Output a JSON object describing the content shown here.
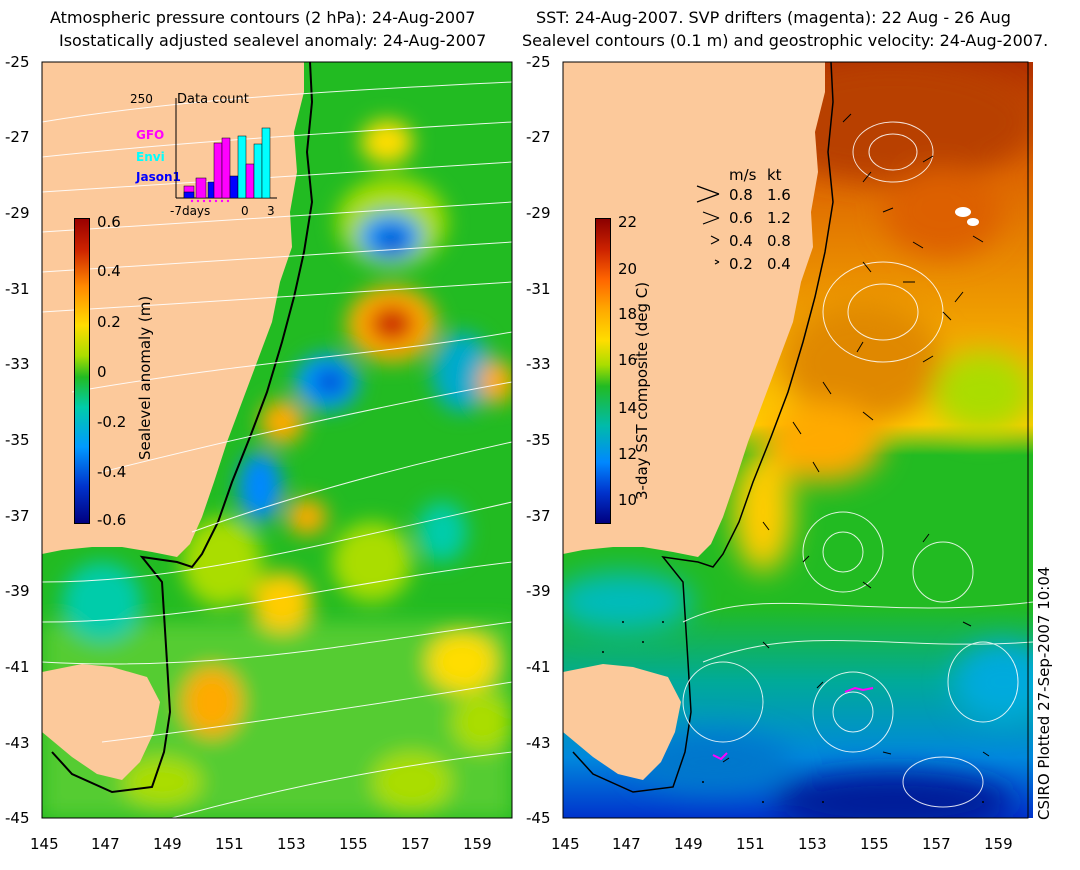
{
  "left_panel": {
    "title_line1": "Atmospheric pressure contours (2 hPa): 24-Aug-2007",
    "title_line2": "Isostatically adjusted sealevel anomaly: 24-Aug-2007",
    "colorbar": {
      "label": "Sealevel anomaly (m)",
      "ticks": [
        "0.6",
        "0.4",
        "0.2",
        "0",
        "-0.2",
        "-0.4",
        "-0.6"
      ],
      "colors": [
        "#990000",
        "#cc2200",
        "#ff8800",
        "#ffdd00",
        "#aadd00",
        "#22bb22",
        "#00ccaa",
        "#0099ff",
        "#0033cc",
        "#000080"
      ]
    },
    "inset": {
      "count_max": "250",
      "title": "Data count",
      "legend": [
        {
          "name": "GFO",
          "color": "#ff00ff"
        },
        {
          "name": "Envi",
          "color": "#00ffff"
        },
        {
          "name": "Jason1",
          "color": "#0000ff"
        }
      ],
      "x_labels": [
        "-7days",
        "0",
        "3"
      ]
    }
  },
  "right_panel": {
    "title_line1": "SST: 24-Aug-2007. SVP drifters (magenta): 22 Aug - 26 Aug",
    "title_line2": "Sealevel contours (0.1 m) and geostrophic velocity: 24-Aug-2007.",
    "colorbar": {
      "label": "3-day SST composite (deg C)",
      "ticks": [
        "22",
        "20",
        "18",
        "16",
        "14",
        "12",
        "10"
      ],
      "colors": [
        "#8b0000",
        "#cc2200",
        "#ff6600",
        "#ffaa00",
        "#ffdd00",
        "#aadd00",
        "#22bb22",
        "#00bbaa",
        "#0088ff",
        "#0033cc",
        "#000080"
      ]
    },
    "velocity_legend": {
      "header_ms": "m/s",
      "header_kt": "kt",
      "rows": [
        {
          "ms": "0.8",
          "kt": "1.6"
        },
        {
          "ms": "0.6",
          "kt": "1.2"
        },
        {
          "ms": "0.4",
          "kt": "0.8"
        },
        {
          "ms": "0.2",
          "kt": "0.4"
        }
      ]
    }
  },
  "axes": {
    "lat_ticks": [
      "-25",
      "-27",
      "-29",
      "-31",
      "-33",
      "-35",
      "-37",
      "-39",
      "-41",
      "-43",
      "-45"
    ],
    "lon_ticks": [
      "145",
      "147",
      "149",
      "151",
      "153",
      "155",
      "157",
      "159"
    ]
  },
  "credit": "CSIRO Plotted 27-Sep-2007 10:04",
  "colors": {
    "land": "#fcc99b",
    "coastline": "#000000",
    "contour": "#ffffff",
    "drifter": "#ff00ff"
  }
}
